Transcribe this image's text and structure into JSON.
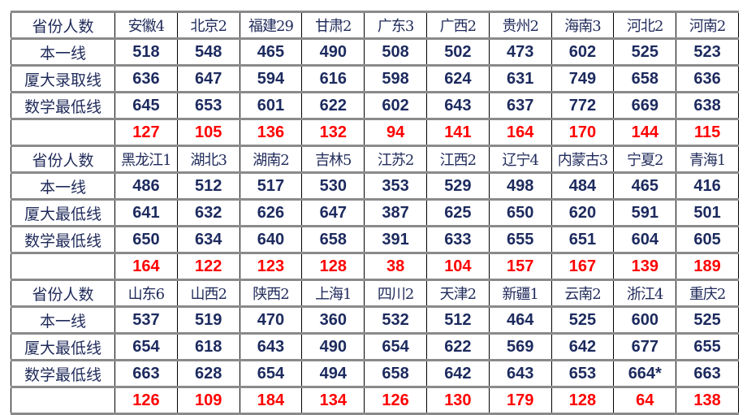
{
  "colors": {
    "label": "#1f2a5a",
    "number": "#1c2a5e",
    "difference": "#ff0000",
    "rule": "#8a8a8a"
  },
  "blocks": [
    {
      "header": "省份人数",
      "provinces": [
        "安徽4",
        "北京2",
        "福建29",
        "甘肃2",
        "广东3",
        "广西2",
        "贵州2",
        "海南3",
        "河北2",
        "河南2"
      ],
      "rows": [
        {
          "label": "本一线",
          "values": [
            "518",
            "548",
            "465",
            "490",
            "508",
            "502",
            "473",
            "602",
            "525",
            "523"
          ]
        },
        {
          "label": "厦大录取线",
          "values": [
            "636",
            "647",
            "594",
            "616",
            "598",
            "624",
            "631",
            "749",
            "658",
            "636"
          ]
        },
        {
          "label": "数学最低线",
          "values": [
            "645",
            "653",
            "601",
            "622",
            "602",
            "643",
            "637",
            "772",
            "669",
            "638"
          ]
        }
      ],
      "differences": [
        "127",
        "105",
        "136",
        "132",
        "94",
        "141",
        "164",
        "170",
        "144",
        "115"
      ]
    },
    {
      "header": "省份人数",
      "provinces": [
        "黑龙江1",
        "湖北3",
        "湖南2",
        "吉林5",
        "江苏2",
        "江西2",
        "辽宁4",
        "内蒙古3",
        "宁夏2",
        "青海1"
      ],
      "rows": [
        {
          "label": "本一线",
          "values": [
            "486",
            "512",
            "517",
            "530",
            "353",
            "529",
            "498",
            "484",
            "465",
            "416"
          ]
        },
        {
          "label": "厦大最低线",
          "values": [
            "641",
            "632",
            "626",
            "647",
            "387",
            "625",
            "650",
            "620",
            "591",
            "501"
          ]
        },
        {
          "label": "数学最低线",
          "values": [
            "650",
            "634",
            "640",
            "658",
            "391",
            "633",
            "655",
            "651",
            "604",
            "605"
          ]
        }
      ],
      "differences": [
        "164",
        "122",
        "123",
        "128",
        "38",
        "104",
        "157",
        "167",
        "139",
        "189"
      ]
    },
    {
      "header": "省份人数",
      "provinces": [
        "山东6",
        "山西2",
        "陕西2",
        "上海1",
        "四川2",
        "天津2",
        "新疆1",
        "云南2",
        "浙江4",
        "重庆2"
      ],
      "rows": [
        {
          "label": "本一线",
          "values": [
            "537",
            "519",
            "470",
            "360",
            "532",
            "512",
            "464",
            "525",
            "600",
            "525"
          ]
        },
        {
          "label": "厦大最低线",
          "values": [
            "654",
            "618",
            "643",
            "490",
            "654",
            "622",
            "569",
            "642",
            "677",
            "655"
          ]
        },
        {
          "label": "数学最低线",
          "values": [
            "663",
            "628",
            "654",
            "494",
            "658",
            "642",
            "643",
            "653",
            "664*",
            "663"
          ]
        }
      ],
      "differences": [
        "126",
        "109",
        "184",
        "134",
        "126",
        "130",
        "179",
        "128",
        "64",
        "138"
      ]
    }
  ]
}
